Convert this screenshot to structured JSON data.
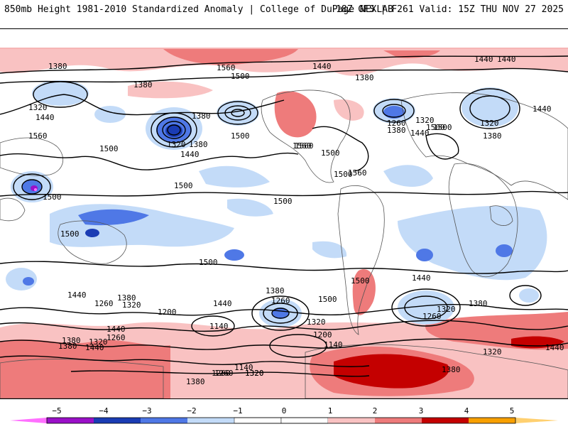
{
  "header": {
    "left_title": "850mb Height 1981-2010 Standardized Anomaly | College of DuPage NEXLAB",
    "right_title": "18Z GFS | F261 Valid: 15Z THU NOV 27 2025"
  },
  "map": {
    "contour_labels": [
      "1380",
      "1560",
      "1500",
      "1440",
      "1380",
      "1440",
      "1320",
      "1440",
      "1560",
      "1380",
      "1500",
      "1380",
      "1320",
      "1380",
      "1440",
      "1500",
      "1560",
      "1500",
      "1500",
      "1260",
      "1320",
      "1380",
      "1440",
      "1500",
      "1440",
      "1320",
      "1380",
      "1440",
      "1560",
      "1500",
      "1560",
      "1500",
      "1500",
      "1500",
      "1500",
      "1500",
      "1500",
      "1380",
      "1260",
      "1320",
      "1440",
      "1380",
      "1440",
      "1260",
      "1320",
      "1200",
      "1140",
      "1200",
      "1140",
      "1380",
      "1260",
      "1320",
      "1380",
      "1440",
      "1500",
      "1260",
      "1320",
      "1440",
      "1260",
      "1320",
      "1380",
      "1440",
      "1320",
      "1380",
      "1140",
      "1260",
      "1320",
      "1380",
      "1440"
    ]
  },
  "colorbar": {
    "tick_labels": [
      "−5",
      "−4",
      "−3",
      "−2",
      "−1",
      "0",
      "1",
      "2",
      "3",
      "4",
      "5"
    ],
    "colors": {
      "m5": "#ff70ff",
      "m4": "#9a10c8",
      "m3": "#1a3cb4",
      "m2": "#4f78e6",
      "m1": "#c3dbf8",
      "zero_lo": "#ffffff",
      "zero_hi": "#ffffff",
      "p1": "#f9c2c2",
      "p2": "#ee7b7b",
      "p3": "#c40000",
      "p4": "#f8a000",
      "p5": "#ffd070"
    }
  }
}
